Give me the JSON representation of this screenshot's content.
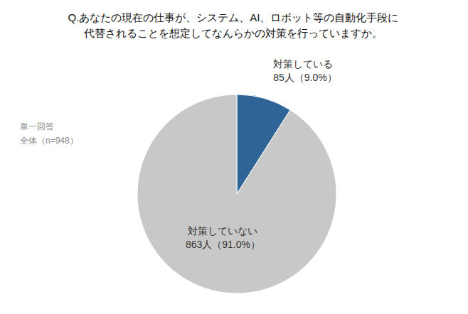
{
  "chart_data": {
    "type": "pie",
    "title": [
      "Q.あなたの現在の仕事が、システム、AI、ロボット等の自動化手段に",
      "代替されることを想定してなんらかの対策を行っていますか。"
    ],
    "categories": [
      "対策している",
      "対策していない"
    ],
    "values": [
      9.0,
      91.0
    ],
    "value_labels": [
      "85人（9.0%）",
      "863人（91.0%）"
    ],
    "colors": [
      "#2e6596",
      "#c8c8c8"
    ],
    "annotations": [
      "単一回答",
      "全体（n=948）"
    ]
  }
}
